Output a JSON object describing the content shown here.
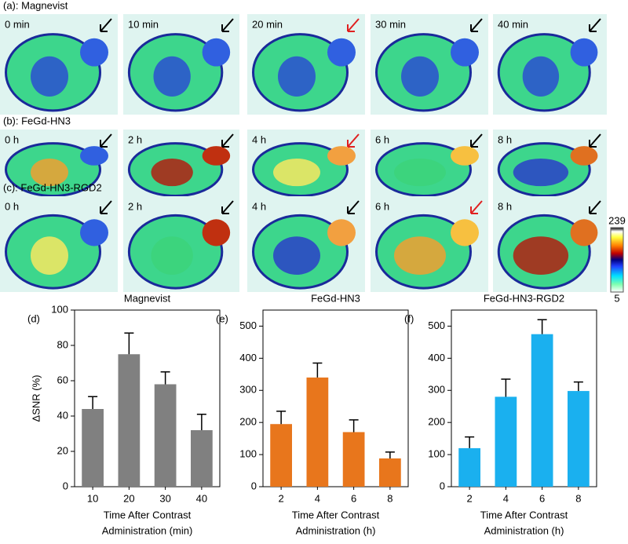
{
  "panels": [
    {
      "label": "(a): Magnevist",
      "times": [
        "0 min",
        "10 min",
        "20 min",
        "30 min",
        "40 min"
      ]
    },
    {
      "label": "(b): FeGd-HN3",
      "times": [
        "0 h",
        "2 h",
        "4 h",
        "6 h",
        "8 h"
      ]
    },
    {
      "label": "(c): FeGd-HN3-RGD2",
      "times": [
        "0 h",
        "2 h",
        "4 h",
        "6 h",
        "8 h"
      ]
    }
  ],
  "colorbar": {
    "max": "239",
    "min": "5"
  },
  "chart_data": [
    {
      "type": "bar",
      "panel": "(d)",
      "title": "Magnevist",
      "ylabel": "ΔSNR (%)",
      "xlabel": [
        "Time After Contrast",
        "Administration (min)"
      ],
      "categories": [
        "10",
        "20",
        "30",
        "40"
      ],
      "values": [
        44,
        75,
        58,
        32
      ],
      "errors": [
        7,
        12,
        7,
        9
      ],
      "color": "#808080",
      "ylim": [
        0,
        100
      ],
      "yticks": [
        0,
        20,
        40,
        60,
        80,
        100
      ]
    },
    {
      "type": "bar",
      "panel": "(e)",
      "title": "FeGd-HN3",
      "xlabel": [
        "Time After Contrast",
        "Administration (h)"
      ],
      "categories": [
        "2",
        "4",
        "6",
        "8"
      ],
      "values": [
        195,
        340,
        170,
        88
      ],
      "errors": [
        40,
        45,
        38,
        20
      ],
      "color": "#e8761c",
      "ylim": [
        0,
        550
      ],
      "yticks": [
        0,
        100,
        200,
        300,
        400,
        500
      ]
    },
    {
      "type": "bar",
      "panel": "(f)",
      "title": "FeGd-HN3-RGD2",
      "xlabel": [
        "Time After Contrast",
        "Administration (h)"
      ],
      "categories": [
        "2",
        "4",
        "6",
        "8"
      ],
      "values": [
        120,
        280,
        475,
        298
      ],
      "errors": [
        35,
        55,
        45,
        28
      ],
      "color": "#1ab0ef",
      "ylim": [
        0,
        550
      ],
      "yticks": [
        0,
        100,
        200,
        300,
        400,
        500
      ]
    }
  ]
}
